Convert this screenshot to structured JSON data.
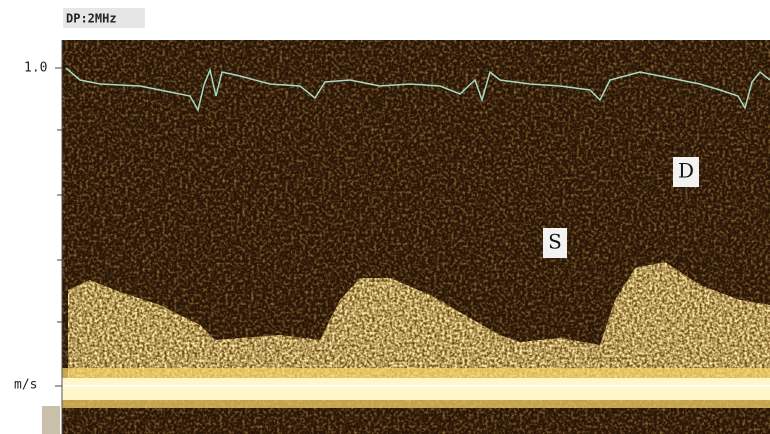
{
  "header": {
    "label": "DP:2MHz"
  },
  "axis": {
    "top_label": "1.0",
    "unit_label": "m/s"
  },
  "annotations": {
    "systolic": "S",
    "diastolic": "D"
  }
}
